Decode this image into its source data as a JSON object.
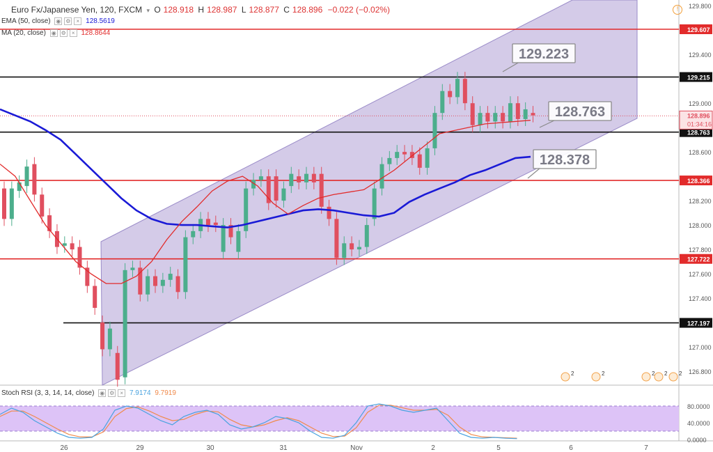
{
  "header": {
    "symbol": "Euro Fx/Japanese Yen, 120, FXCM",
    "open_label": "O",
    "open": "128.918",
    "high_label": "H",
    "high": "128.987",
    "low_label": "L",
    "low": "128.877",
    "close_label": "C",
    "close": "128.896",
    "change": "−0.022 (−0.02%)"
  },
  "indicators": {
    "ema": {
      "label": "EMA (50, close)",
      "value": "128.5619",
      "color": "#1a1ad6"
    },
    "ma": {
      "label": "MA (20, close)",
      "value": "128.8644",
      "color": "#e22b2b"
    },
    "rsi": {
      "label": "Stoch RSI (3, 3, 14, 14, close)",
      "k": "7.9174",
      "d": "9.7919",
      "k_color": "#4aa3df",
      "d_color": "#f08a4b"
    }
  },
  "chart_data": {
    "type": "candlestick",
    "xlabels": [
      "26",
      "29",
      "30",
      "31",
      "Nov",
      "2",
      "5",
      "6",
      "7"
    ],
    "y_ticks": [
      "129.800",
      "129.400",
      "129.000",
      "128.800",
      "128.600",
      "128.200",
      "128.000",
      "127.800",
      "127.600",
      "127.400",
      "127.000",
      "126.800"
    ],
    "y_tick_values": [
      129.8,
      129.4,
      129.0,
      128.8,
      128.6,
      128.2,
      128.0,
      127.8,
      127.6,
      127.4,
      127.0,
      126.8
    ],
    "ylim": [
      126.72,
      129.83
    ],
    "candles": [
      [
        128.3,
        128.05
      ],
      [
        128.05,
        128.3
      ],
      [
        128.28,
        128.35
      ],
      [
        128.32,
        128.48
      ],
      [
        128.5,
        128.25
      ],
      [
        128.25,
        128.07
      ],
      [
        128.08,
        127.95
      ],
      [
        127.95,
        127.82
      ],
      [
        127.83,
        127.85
      ],
      [
        127.85,
        127.8
      ],
      [
        127.82,
        127.65
      ],
      [
        127.65,
        127.5
      ],
      [
        127.5,
        127.32
      ],
      [
        127.2,
        126.98
      ],
      [
        126.98,
        127.15
      ],
      [
        126.95,
        126.73
      ],
      [
        126.75,
        127.63
      ],
      [
        127.63,
        127.65
      ],
      [
        127.65,
        127.43
      ],
      [
        127.43,
        127.58
      ],
      [
        127.58,
        127.5
      ],
      [
        127.5,
        127.55
      ],
      [
        127.55,
        127.6
      ],
      [
        127.58,
        127.45
      ],
      [
        127.45,
        127.9
      ],
      [
        127.9,
        127.95
      ],
      [
        127.95,
        128.05
      ],
      [
        128.05,
        128.0
      ],
      [
        128.02,
        128.0
      ],
      [
        127.78,
        128.0
      ],
      [
        128.0,
        127.9
      ],
      [
        127.78,
        127.95
      ],
      [
        127.95,
        128.3
      ],
      [
        128.3,
        128.37
      ],
      [
        128.37,
        128.4
      ],
      [
        128.4,
        128.18
      ],
      [
        128.4,
        128.2
      ],
      [
        128.2,
        128.3
      ],
      [
        128.32,
        128.42
      ],
      [
        128.4,
        128.35
      ],
      [
        128.35,
        128.42
      ],
      [
        128.42,
        128.35
      ],
      [
        128.42,
        128.15
      ],
      [
        128.15,
        128.05
      ],
      [
        128.05,
        127.73
      ],
      [
        127.73,
        127.85
      ],
      [
        127.85,
        127.8
      ],
      [
        127.8,
        127.82
      ],
      [
        127.82,
        128.0
      ],
      [
        128.05,
        128.3
      ],
      [
        128.3,
        128.5
      ],
      [
        128.5,
        128.55
      ],
      [
        128.55,
        128.6
      ],
      [
        128.6,
        128.58
      ],
      [
        128.6,
        128.55
      ],
      [
        128.58,
        128.47
      ],
      [
        128.47,
        128.63
      ],
      [
        128.63,
        128.92
      ],
      [
        128.92,
        129.1
      ],
      [
        129.1,
        129.05
      ],
      [
        129.05,
        129.2
      ],
      [
        129.2,
        129.0
      ],
      [
        129.0,
        128.82
      ],
      [
        128.82,
        128.92
      ],
      [
        128.92,
        128.85
      ],
      [
        128.85,
        128.92
      ],
      [
        128.92,
        128.85
      ],
      [
        128.85,
        129.0
      ],
      [
        129.0,
        128.87
      ],
      [
        128.87,
        128.95
      ],
      [
        128.92,
        128.9
      ]
    ],
    "ema50": [
      128.95,
      128.9,
      128.85,
      128.78,
      128.7,
      128.58,
      128.46,
      128.34,
      128.22,
      128.12,
      128.05,
      128.01,
      128.0,
      128.0,
      127.99,
      127.98,
      128.0,
      128.03,
      128.06,
      128.09,
      128.12,
      128.13,
      128.12,
      128.1,
      128.08,
      128.07,
      128.1,
      128.19,
      128.25,
      128.3,
      128.35,
      128.41,
      128.45,
      128.5,
      128.55,
      128.56
    ],
    "ema50_x": [
      0,
      10,
      20,
      30,
      40,
      50,
      60,
      70,
      80,
      90,
      100,
      110,
      120,
      130,
      140,
      150,
      160,
      170,
      180,
      190,
      200,
      210,
      220,
      230,
      240,
      250,
      260,
      270,
      280,
      290,
      300,
      310,
      320,
      330,
      340,
      350
    ],
    "ma20": [
      128.5,
      128.4,
      128.2,
      128.0,
      127.85,
      127.7,
      127.6,
      127.52,
      127.52,
      127.58,
      127.7,
      127.88,
      128.03,
      128.15,
      128.28,
      128.36,
      128.4,
      128.32,
      128.18,
      128.09,
      128.16,
      128.22,
      128.25,
      128.29,
      128.45,
      128.75,
      128.83,
      128.86
    ],
    "ma20_x": [
      0,
      10,
      20,
      30,
      40,
      50,
      60,
      70,
      80,
      90,
      100,
      110,
      120,
      130,
      140,
      150,
      160,
      170,
      180,
      190,
      200,
      210,
      220,
      240,
      260,
      290,
      320,
      350
    ],
    "hlines": [
      {
        "value": 129.607,
        "label": "129.607",
        "color": "#e22b2b"
      },
      {
        "value": 129.215,
        "label": "129.215",
        "color": "#111111"
      },
      {
        "value": 128.763,
        "label": "128.763",
        "color": "#111111"
      },
      {
        "value": 128.366,
        "label": "128.366",
        "color": "#e22b2b"
      },
      {
        "value": 127.722,
        "label": "127.722",
        "color": "#e22b2b"
      },
      {
        "value": 127.197,
        "label": "127.197",
        "color": "#111111"
      }
    ],
    "price_tag": {
      "value": "128.896",
      "countdown": "01:34:16"
    },
    "callouts": [
      "129.223",
      "128.763",
      "128.378"
    ],
    "rsi_ticks": [
      "80.0000",
      "40.0000",
      "0.0000"
    ],
    "rsi_tick_values": [
      80,
      40,
      0
    ],
    "rsi_k": [
      60,
      75,
      65,
      45,
      30,
      15,
      5,
      3,
      5,
      25,
      70,
      80,
      75,
      60,
      45,
      35,
      55,
      65,
      70,
      60,
      35,
      25,
      30,
      40,
      55,
      50,
      40,
      20,
      5,
      3,
      10,
      40,
      80,
      85,
      80,
      70,
      65,
      70,
      75,
      45,
      15,
      5,
      3,
      5,
      3,
      2
    ],
    "rsi_d": [
      55,
      68,
      68,
      55,
      40,
      25,
      12,
      6,
      6,
      18,
      55,
      74,
      78,
      68,
      55,
      45,
      48,
      60,
      68,
      66,
      48,
      35,
      30,
      35,
      45,
      52,
      45,
      30,
      15,
      7,
      8,
      28,
      65,
      82,
      82,
      76,
      70,
      70,
      72,
      58,
      30,
      12,
      6,
      5,
      4,
      3
    ],
    "rsi_step": 16.5,
    "colors": {
      "up": "#4cae8c",
      "down": "#e04f5f",
      "channel": "#b7a9d9",
      "ema": "#1a1ad6",
      "ma": "#e22b2b",
      "overbought_band": "#ddc3f7"
    }
  }
}
